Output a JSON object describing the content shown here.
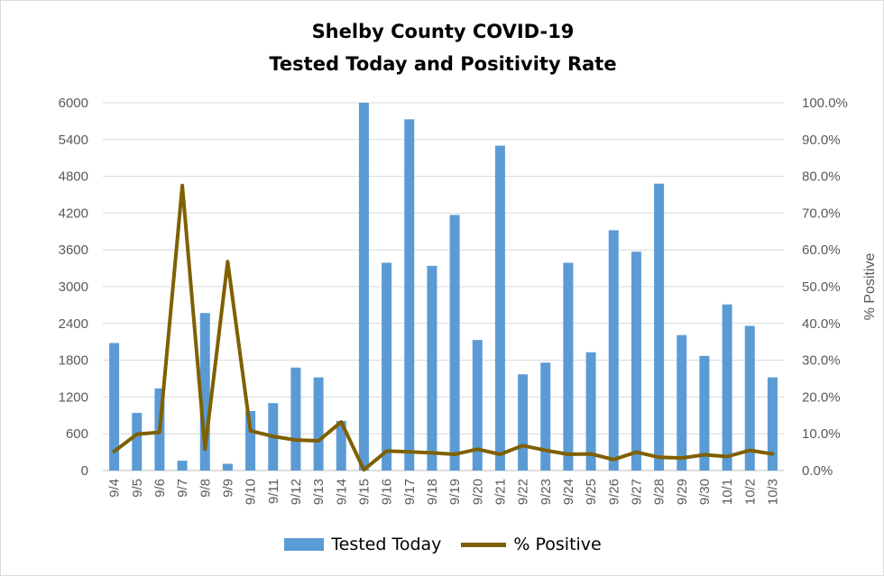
{
  "chart_data": {
    "type": "bar+line",
    "title": "Shelby County COVID-19",
    "subtitle": "Tested Today and Positivity Rate",
    "ylabel_right": "% Positive",
    "categories": [
      "9/4",
      "9/5",
      "9/6",
      "9/7",
      "9/8",
      "9/9",
      "9/10",
      "9/11",
      "9/12",
      "9/13",
      "9/14",
      "9/15",
      "9/16",
      "9/17",
      "9/18",
      "9/19",
      "9/20",
      "9/21",
      "9/22",
      "9/23",
      "9/24",
      "9/25",
      "9/26",
      "9/27",
      "9/28",
      "9/29",
      "9/30",
      "10/1",
      "10/2",
      "10/3"
    ],
    "y_left": {
      "min": 0,
      "max": 6000,
      "ticks": [
        "0",
        "600",
        "1200",
        "1800",
        "2400",
        "3000",
        "3600",
        "4200",
        "4800",
        "5400",
        "6000"
      ]
    },
    "y_right": {
      "min": 0,
      "max": 1.0,
      "ticks": [
        "0.0%",
        "10.0%",
        "20.0%",
        "30.0%",
        "40.0%",
        "50.0%",
        "60.0%",
        "70.0%",
        "80.0%",
        "90.0%",
        "100.0%"
      ]
    },
    "series": [
      {
        "name": "Tested Today",
        "type": "bar",
        "axis": "left",
        "color": "#5b9bd5",
        "values": [
          2080,
          940,
          1340,
          160,
          2570,
          110,
          970,
          1100,
          1680,
          1520,
          810,
          6000,
          3390,
          5730,
          3340,
          4170,
          2130,
          5300,
          1570,
          1760,
          3390,
          1930,
          3920,
          3570,
          4680,
          2210,
          1870,
          2710,
          2360,
          1520
        ]
      },
      {
        "name": "% Positive",
        "type": "line",
        "axis": "right",
        "color": "#7f6000",
        "values": [
          0.052,
          0.099,
          0.104,
          0.775,
          0.058,
          0.568,
          0.108,
          0.093,
          0.083,
          0.081,
          0.132,
          0.002,
          0.053,
          0.051,
          0.048,
          0.044,
          0.058,
          0.044,
          0.068,
          0.055,
          0.044,
          0.045,
          0.03,
          0.05,
          0.036,
          0.034,
          0.043,
          0.038,
          0.055,
          0.045
        ]
      }
    ],
    "grid": true,
    "legend_position": "bottom"
  }
}
